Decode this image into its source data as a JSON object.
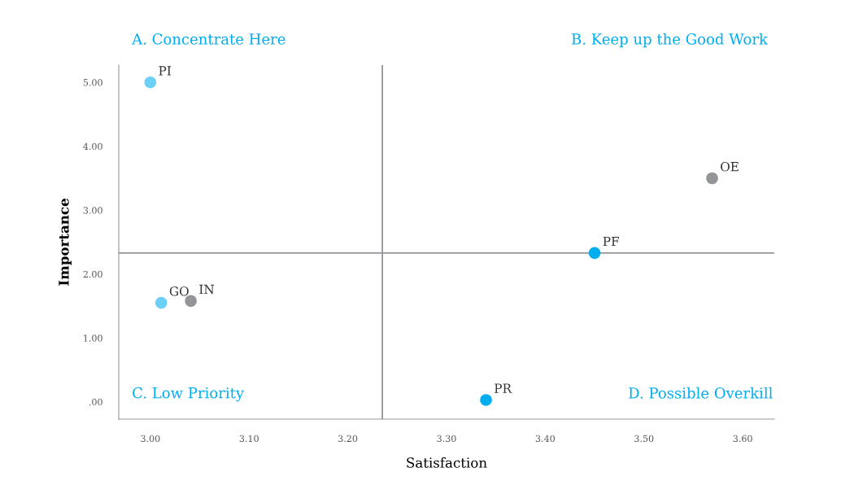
{
  "chart_data": {
    "type": "scatter",
    "xlabel": "Satisfaction",
    "ylabel": "Importance",
    "series": [
      {
        "name": "PI",
        "color": "#6dcff6",
        "x": [
          3.0
        ],
        "values": [
          5.0
        ]
      },
      {
        "name": "GO",
        "color": "#6dcff6",
        "x": [
          3.011
        ],
        "values": [
          1.55
        ]
      },
      {
        "name": "IN",
        "color": "#939598",
        "x": [
          3.041
        ],
        "values": [
          1.58
        ]
      },
      {
        "name": "PF",
        "color": "#00aeef",
        "x": [
          3.45
        ],
        "values": [
          2.33
        ]
      },
      {
        "name": "OE",
        "color": "#939598",
        "x": [
          3.569
        ],
        "values": [
          3.5
        ]
      },
      {
        "name": "PR",
        "color": "#00aeef",
        "x": [
          3.34
        ],
        "values": [
          0.03
        ]
      }
    ],
    "xlim": [
      2.968,
      3.632
    ],
    "xticks": [
      {
        "value": 3.0,
        "label": "3.00"
      },
      {
        "value": 3.1,
        "label": "3.10"
      },
      {
        "value": 3.2,
        "label": "3.20"
      },
      {
        "value": 3.3,
        "label": "3.30"
      },
      {
        "value": 3.4,
        "label": "3.40"
      },
      {
        "value": 3.5,
        "label": "3.50"
      },
      {
        "value": 3.6,
        "label": "3.60"
      }
    ],
    "ylim": [
      -0.27,
      5.27
    ],
    "yticks": [
      {
        "value": 0,
        "label": ".00"
      },
      {
        "value": 1,
        "label": "1.00"
      },
      {
        "value": 2,
        "label": "2.00"
      },
      {
        "value": 3,
        "label": "3.00"
      },
      {
        "value": 4,
        "label": "4.00"
      },
      {
        "value": 5,
        "label": "5.00"
      }
    ],
    "ref_lines": [
      {
        "axis": "x",
        "value": 3.235,
        "color": "#939598"
      },
      {
        "axis": "y",
        "value": 2.33,
        "color": "#939598"
      }
    ],
    "annotations": [
      "A. Concentrate Here",
      "B. Keep up the Good Work",
      "C. Low Priority",
      "D. Possible Overkill"
    ],
    "marker": "circle",
    "grid": false,
    "legend": false
  }
}
